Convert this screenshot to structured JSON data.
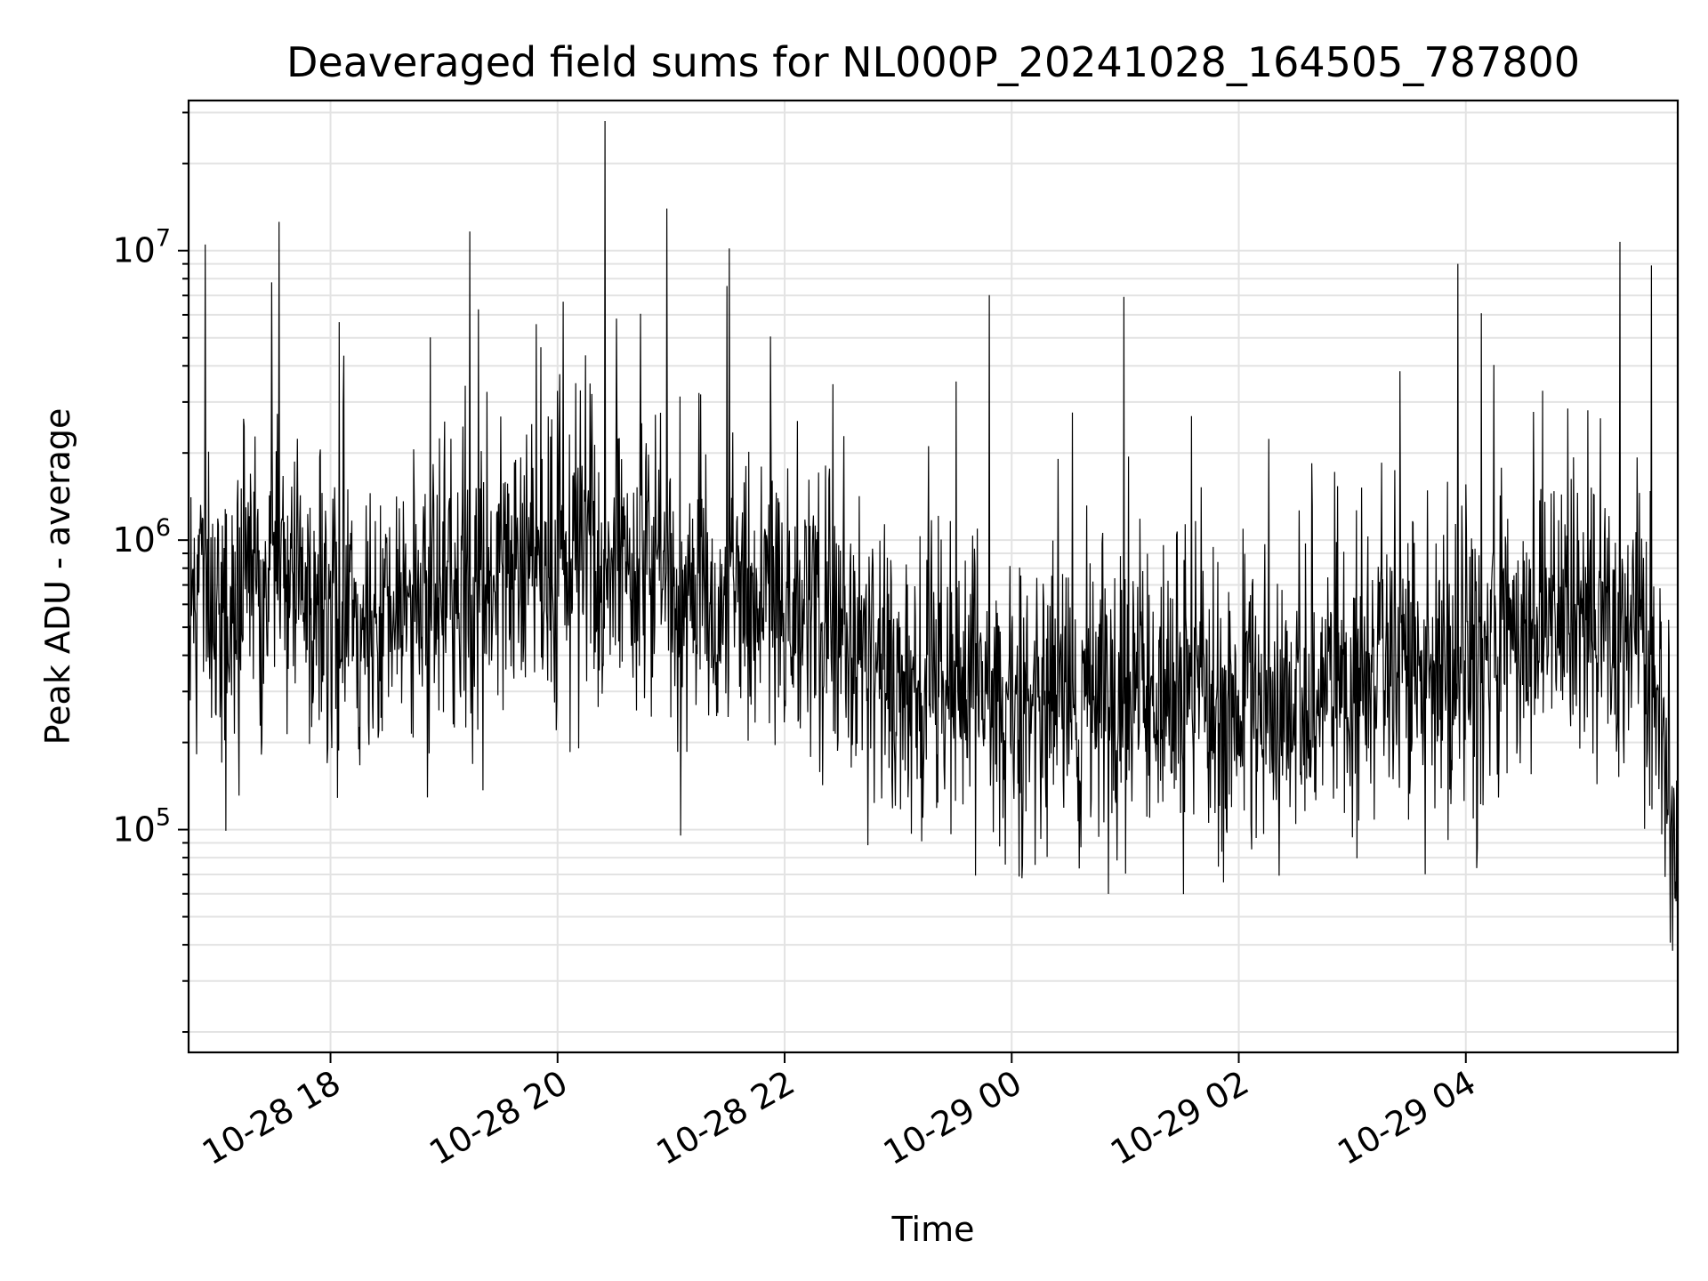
{
  "chart_data": {
    "type": "line",
    "title": "Deaveraged field sums for NL000P_20241028_164505_787800",
    "xlabel": "Time",
    "ylabel": "Peak ADU - average",
    "yscale": "log",
    "ylim": [
      17000,
      33000000
    ],
    "xlim": [
      "10-28 16:45",
      "10-29 05:52"
    ],
    "grid": true,
    "x_ticks": [
      "10-28 18",
      "10-28 20",
      "10-28 22",
      "10-29 00",
      "10-29 02",
      "10-29 04"
    ],
    "y_ticks": [
      {
        "base": "10",
        "exp": "5",
        "value": 100000
      },
      {
        "base": "10",
        "exp": "6",
        "value": 1000000
      },
      {
        "base": "10",
        "exp": "7",
        "value": 10000000
      }
    ],
    "line_color": "#000000",
    "series": [
      {
        "x": [
          "10-28 16:45",
          "10-28 17:00",
          "10-28 17:15",
          "10-28 17:30",
          "10-28 17:45",
          "10-28 18:00",
          "10-28 18:15",
          "10-28 18:30",
          "10-28 18:45",
          "10-28 19:00",
          "10-28 19:15",
          "10-28 19:30",
          "10-28 19:45",
          "10-28 20:00",
          "10-28 20:15",
          "10-28 20:30",
          "10-28 20:45",
          "10-28 21:00",
          "10-28 21:15",
          "10-28 21:30",
          "10-28 21:45",
          "10-28 22:00",
          "10-28 22:15",
          "10-28 22:30",
          "10-28 22:45",
          "10-28 23:00",
          "10-28 23:15",
          "10-28 23:30",
          "10-28 23:45",
          "10-29 00:00",
          "10-29 00:15",
          "10-29 00:30",
          "10-29 00:45",
          "10-29 01:00",
          "10-29 01:15",
          "10-29 01:30",
          "10-29 01:45",
          "10-29 02:00",
          "10-29 02:15",
          "10-29 02:30",
          "10-29 02:45",
          "10-29 03:00",
          "10-29 03:15",
          "10-29 03:30",
          "10-29 03:45",
          "10-29 04:00",
          "10-29 04:15",
          "10-29 04:30",
          "10-29 04:45",
          "10-29 05:00",
          "10-29 05:15",
          "10-29 05:30",
          "10-29 05:45",
          "10-29 05:52"
        ],
        "y": [
          550000,
          600000,
          650000,
          700000,
          650000,
          550000,
          500000,
          550000,
          600000,
          650000,
          700000,
          750000,
          800000,
          850000,
          900000,
          850000,
          800000,
          750000,
          700000,
          650000,
          620000,
          600000,
          550000,
          450000,
          380000,
          350000,
          330000,
          320000,
          310000,
          300000,
          290000,
          280000,
          290000,
          300000,
          290000,
          280000,
          270000,
          260000,
          270000,
          280000,
          300000,
          320000,
          340000,
          360000,
          380000,
          400000,
          430000,
          460000,
          500000,
          520000,
          550000,
          580000,
          250000,
          60000
        ]
      }
    ]
  }
}
